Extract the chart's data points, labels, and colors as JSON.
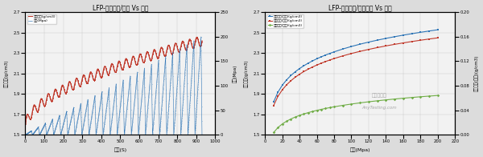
{
  "chart1": {
    "title": "LFP-压实密度/压强 Vs 时间",
    "xlabel": "时间(S)",
    "ylabel_left": "压实密度(g/cm3)",
    "ylabel_right": "压强(Mpa)",
    "xlim": [
      0,
      1000
    ],
    "ylim_left": [
      1.5,
      2.7
    ],
    "ylim_right": [
      0,
      250
    ],
    "yticks_left": [
      1.5,
      1.7,
      1.9,
      2.1,
      2.3,
      2.5,
      2.7
    ],
    "yticks_right": [
      0,
      50,
      100,
      150,
      200,
      250
    ],
    "xticks": [
      0,
      100,
      200,
      300,
      400,
      500,
      600,
      700,
      800,
      900,
      1000
    ],
    "legend1": "压实密度(g/cm3)",
    "legend2": "压强(Mpa)",
    "color_density": "#c0392b",
    "color_pressure": "#2e75b6",
    "n_cycles": 25,
    "t_total": 930,
    "background": "#f2f2f2"
  },
  "chart2": {
    "title": "LFP-压实密度/压密反弹 Vs 压强",
    "xlabel": "压强(Mpa)",
    "ylabel_left": "压实密度(g/cm3)",
    "ylabel_right": "压实密度(反弹)(g/cm3)",
    "xlim": [
      0,
      220
    ],
    "ylim_left": [
      1.5,
      2.7
    ],
    "ylim_right": [
      0,
      0.2
    ],
    "yticks_left": [
      1.5,
      1.7,
      1.9,
      2.1,
      2.3,
      2.5,
      2.7
    ],
    "yticks_right": [
      0.0,
      0.04,
      0.08,
      0.12,
      0.16,
      0.2
    ],
    "xticks": [
      0,
      20,
      40,
      60,
      80,
      100,
      120,
      140,
      160,
      180,
      200,
      220
    ],
    "legend1": "压实密度(加压)(g/cm3)",
    "legend2": "压实密度(卸压)(g/cm3)",
    "legend3": "压实密度(反弹)(g/cm3)",
    "color_load": "#2e75b6",
    "color_unload": "#c0392b",
    "color_springback": "#70ad47",
    "background": "#f2f2f2"
  },
  "watermark1": "青松检测网",
  "watermark2": "AnyTesting.com",
  "fig_bg": "#dcdcdc"
}
